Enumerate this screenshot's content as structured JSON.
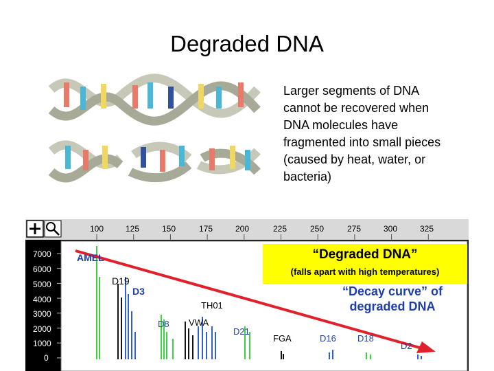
{
  "slide": {
    "title": "Degraded DNA",
    "description": "Larger segments of DNA\ncannot be recovered when\nDNA molecules have\nfragmented into small pieces\n(caused by heat, water, or\nbacteria)"
  },
  "electropherogram": {
    "toolbar": {
      "zoom_in_icon": "plus-icon",
      "search_icon": "magnifier-icon"
    },
    "x_ticks": [
      "100",
      "125",
      "150",
      "175",
      "200",
      "225",
      "250",
      "275",
      "300",
      "325"
    ],
    "y_ticks": [
      "7000",
      "6000",
      "5000",
      "4000",
      "3000",
      "2000",
      "1000",
      "0"
    ],
    "markers": {
      "amel": "AMEL",
      "d19": "D19",
      "d3": "D3",
      "th01": "TH01",
      "d8": "D8",
      "vwa": "VWA",
      "d21": "D21",
      "fga": "FGA",
      "d16": "D16",
      "d18": "D18",
      "d2": "D2"
    },
    "callout": {
      "title": "“Degraded DNA”",
      "subtitle": "(falls apart with high temperatures)"
    },
    "decay_label": "“Decay curve” of\ndegraded DNA",
    "colors": {
      "green": "#3ed13e",
      "blue": "#2f5fd0",
      "black": "#111111",
      "arrow": "#e0202a",
      "callout_bg": "#ffff00"
    }
  }
}
